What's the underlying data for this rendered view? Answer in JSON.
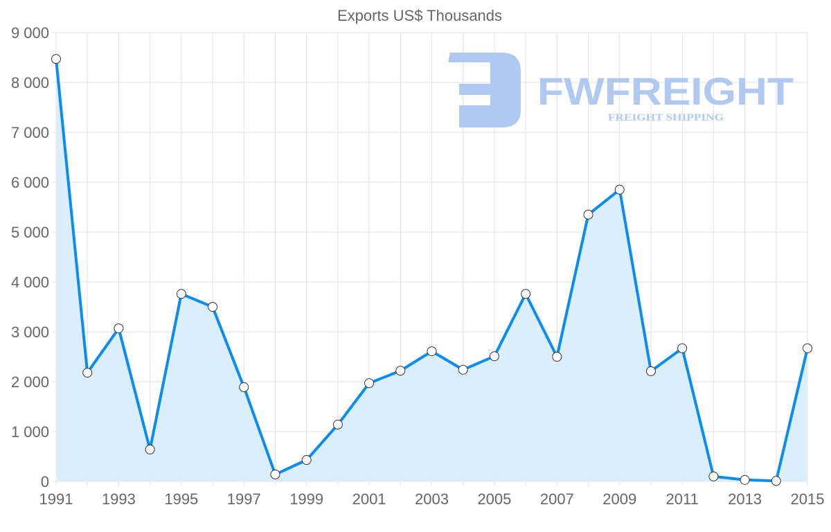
{
  "chart_data": {
    "type": "line",
    "title": "Exports US$ Thousands",
    "xlabel": "",
    "ylabel": "",
    "x": [
      1991,
      1992,
      1993,
      1994,
      1995,
      1996,
      1997,
      1998,
      1999,
      2000,
      2001,
      2002,
      2003,
      2004,
      2005,
      2006,
      2007,
      2008,
      2009,
      2010,
      2011,
      2012,
      2013,
      2014,
      2015
    ],
    "x_tick_labels": [
      "1991",
      "1993",
      "1995",
      "1997",
      "1999",
      "2001",
      "2003",
      "2005",
      "2007",
      "2009",
      "2011",
      "2013",
      "2015"
    ],
    "y_tick_labels": [
      "0",
      "1 000",
      "2 000",
      "3 000",
      "4 000",
      "5 000",
      "6 000",
      "7 000",
      "8 000",
      "9 000"
    ],
    "ylim": [
      0,
      9000
    ],
    "grid": true,
    "series": [
      {
        "name": "Exports US$ Thousands",
        "values": [
          8470,
          2180,
          3070,
          640,
          3760,
          3500,
          1890,
          140,
          430,
          1140,
          1970,
          2220,
          2610,
          2240,
          2510,
          3760,
          2500,
          5350,
          5850,
          2210,
          2670,
          100,
          30,
          10,
          2670
        ],
        "color": "#0a8cf0",
        "fill": "#dbeefd"
      }
    ],
    "legend": "none"
  },
  "watermark": {
    "brand": "FWFREIGHT",
    "tagline": "FREIGHT SHIPPING",
    "color": "#b0c9f2"
  }
}
